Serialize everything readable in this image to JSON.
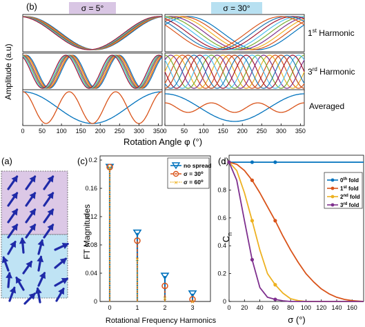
{
  "panel_b": {
    "label": "(b)",
    "left_title": "σ = 5°",
    "right_title": "σ = 30°",
    "ylabel": "Amplitude (a.u)",
    "xlabel": "Rotation Angle φ (°)",
    "row_labels": [
      "1st Harmonic",
      "3rd Harmonic",
      "Averaged"
    ],
    "row_label_base": [
      "1",
      "3",
      "Averaged"
    ],
    "row_label_sup": [
      "st",
      "rd",
      ""
    ],
    "row_label_tail": [
      " Harmonic",
      " Harmonic",
      ""
    ],
    "xticks": [
      "0",
      "50",
      "100",
      "150",
      "200",
      "250",
      "300",
      "350"
    ],
    "title_bg_left": "#d9c6e4",
    "title_bg_right": "#b7e0f1"
  },
  "panel_a": {
    "label": "(a)",
    "top_bg": "#dcc8e6",
    "bottom_bg": "#bfe3f4",
    "arrow_color": "#1f2aa8",
    "arrows_aligned_count": 12,
    "arrows_spread_count": 16
  },
  "panel_c": {
    "label": "(c)",
    "ylabel": "FT Magnitudes",
    "xlabel": "Rotational Frequency Harmonics",
    "yticks": [
      "0",
      "0.04",
      "0.08",
      "0.12",
      "0.16",
      "0.2"
    ],
    "xticks": [
      "0",
      "1",
      "2",
      "3"
    ],
    "legend": [
      "no spread",
      "σ = 30°",
      "σ = 60°"
    ],
    "legend_base": [
      "no spread",
      "σ = 30",
      "σ = 60"
    ],
    "legend_sup": [
      "",
      "o",
      "o"
    ]
  },
  "panel_d": {
    "label": "(d)",
    "ylabel": "Cn",
    "ylabel_base": "C",
    "ylabel_sub": "n",
    "xlabel": "σ (°)",
    "xticks": [
      "0",
      "20",
      "40",
      "60",
      "80",
      "100",
      "120",
      "140",
      "160"
    ],
    "yticks": [
      "0",
      "0.2",
      "0.4",
      "0.6",
      "0.8",
      "1"
    ],
    "legend": [
      "0th fold",
      "1st fold",
      "2nd fold",
      "3rd fold"
    ],
    "legend_num": [
      "0",
      "1",
      "2",
      "3"
    ],
    "legend_sup": [
      "th",
      "st",
      "nd",
      "rd"
    ],
    "legend_tail": [
      " fold",
      " fold",
      " fold",
      " fold"
    ]
  },
  "colors": {
    "blue": "#1f77b4",
    "red": "#d95319",
    "yellow": "#edb120",
    "purple": "#7e2f8e",
    "cyan": "#4dbeee",
    "green": "#77ac30",
    "darkred": "#a2142f",
    "steel": "#0072bd"
  },
  "chart_data": [
    {
      "type": "line",
      "panel": "(b) σ = 5°, 1st Harmonic",
      "x_range": [
        0,
        360
      ],
      "series_description": "cos(φ − δ) curves, offsets δ spread ±~10°",
      "offsets_deg": [
        -9,
        -6,
        -3,
        0,
        3,
        6,
        9
      ]
    },
    {
      "type": "line",
      "panel": "(b) σ = 30°, 1st Harmonic",
      "x_range": [
        0,
        360
      ],
      "offsets_deg": [
        -60,
        -45,
        -30,
        -15,
        0,
        15,
        30,
        45,
        60
      ]
    },
    {
      "type": "line",
      "panel": "(b) σ = 5°, 3rd Harmonic",
      "x_range": [
        0,
        360
      ],
      "offsets_deg": [
        -9,
        -6,
        -3,
        0,
        3,
        6,
        9
      ]
    },
    {
      "type": "line",
      "panel": "(b) σ = 30°, 3rd Harmonic",
      "x_range": [
        0,
        360
      ],
      "offsets_deg": [
        -60,
        -45,
        -30,
        -15,
        0,
        15,
        30,
        45,
        60
      ]
    },
    {
      "type": "line",
      "panel": "(b) Averaged",
      "x_range": [
        0,
        360
      ],
      "series": [
        {
          "harmonic": 1,
          "amplitude_sigma5": 1.0,
          "amplitude_sigma30": 0.87
        },
        {
          "harmonic": 3,
          "amplitude_sigma5": 1.0,
          "amplitude_sigma30": 0.3
        }
      ]
    },
    {
      "type": "bar",
      "panel": "(c)",
      "categories": [
        "0",
        "1",
        "2",
        "3"
      ],
      "ylim": [
        0,
        0.2
      ],
      "series": [
        {
          "name": "no spread",
          "values": [
            0.19,
            0.097,
            0.036,
            0.011
          ]
        },
        {
          "name": "σ = 30°",
          "values": [
            0.19,
            0.086,
            0.022,
            0.003
          ]
        },
        {
          "name": "σ = 60°",
          "values": [
            0.19,
            0.06,
            0.005,
            0.0
          ]
        }
      ]
    },
    {
      "type": "line",
      "panel": "(d)",
      "xlim": [
        0,
        175
      ],
      "ylim": [
        0,
        1.05
      ],
      "series": [
        {
          "name": "0th fold",
          "x": [
            0,
            30,
            60,
            90,
            120,
            150,
            175
          ],
          "y": [
            1,
            1,
            1,
            1,
            1,
            1,
            1
          ],
          "markers_x": [
            0,
            30,
            60
          ]
        },
        {
          "name": "1st fold",
          "x": [
            0,
            10,
            20,
            30,
            40,
            50,
            60,
            70,
            80,
            90,
            100,
            110,
            120,
            130,
            140,
            150,
            160,
            175
          ],
          "y": [
            1,
            0.985,
            0.94,
            0.87,
            0.78,
            0.68,
            0.58,
            0.47,
            0.37,
            0.28,
            0.2,
            0.14,
            0.09,
            0.055,
            0.03,
            0.015,
            0.006,
            0.0
          ],
          "markers_x": [
            0,
            30,
            60
          ]
        },
        {
          "name": "2nd fold",
          "x": [
            0,
            10,
            20,
            30,
            40,
            50,
            60,
            70,
            80,
            90,
            100,
            110,
            120,
            175
          ],
          "y": [
            1,
            0.94,
            0.78,
            0.58,
            0.37,
            0.2,
            0.12,
            0.06,
            0.02,
            0.006,
            0.0,
            0.0,
            0.0,
            0.0
          ],
          "markers_x": [
            0,
            30,
            60
          ]
        },
        {
          "name": "3rd fold",
          "x": [
            0,
            10,
            20,
            30,
            40,
            50,
            60,
            70,
            80,
            90,
            100,
            175
          ],
          "y": [
            1,
            0.87,
            0.58,
            0.3,
            0.1,
            0.03,
            0.015,
            0.005,
            0.0,
            0.0,
            0.0,
            0.0
          ],
          "markers_x": [
            0,
            30,
            60
          ]
        }
      ]
    }
  ]
}
